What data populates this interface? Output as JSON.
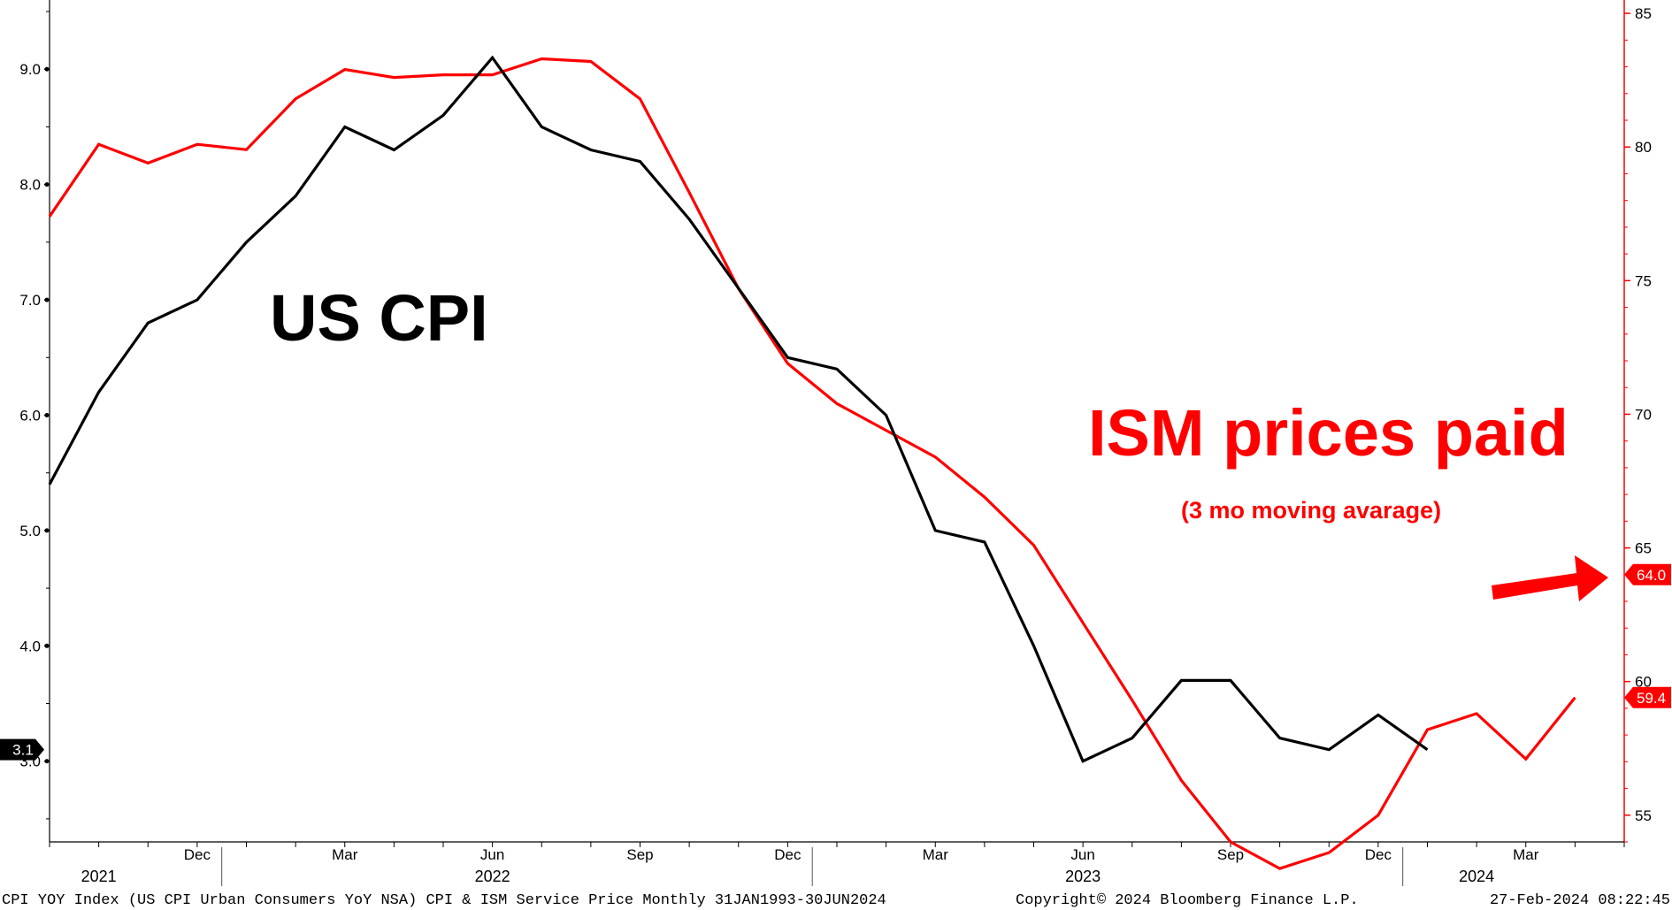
{
  "chart_data": {
    "type": "line",
    "colors": {
      "cpi": "#000000",
      "ism": "#ff0000"
    },
    "left_axis": {
      "ylim": [
        2.3,
        9.6
      ],
      "ticks": [
        "9.0",
        "8.0",
        "7.0",
        "6.0",
        "5.0",
        "4.0",
        "3.0"
      ],
      "tick_values": [
        9,
        8,
        7,
        6,
        5,
        4,
        3
      ]
    },
    "right_axis": {
      "ylim": [
        54,
        85.5
      ],
      "ticks": [
        "85",
        "80",
        "75",
        "70",
        "65",
        "60",
        "55"
      ],
      "tick_values": [
        85,
        80,
        75,
        70,
        65,
        60,
        55
      ]
    },
    "x_start": "2021-09",
    "x_end": "2024-05",
    "month_labels": [
      {
        "date": "2021-12",
        "label": "Dec"
      },
      {
        "date": "2022-03",
        "label": "Mar"
      },
      {
        "date": "2022-06",
        "label": "Jun"
      },
      {
        "date": "2022-09",
        "label": "Sep"
      },
      {
        "date": "2022-12",
        "label": "Dec"
      },
      {
        "date": "2023-03",
        "label": "Mar"
      },
      {
        "date": "2023-06",
        "label": "Jun"
      },
      {
        "date": "2023-09",
        "label": "Sep"
      },
      {
        "date": "2023-12",
        "label": "Dec"
      },
      {
        "date": "2024-03",
        "label": "Mar"
      }
    ],
    "year_labels": [
      {
        "date": "2021-10",
        "label": "2021"
      },
      {
        "date": "2022-06",
        "label": "2022"
      },
      {
        "date": "2023-06",
        "label": "2023"
      },
      {
        "date": "2024-02",
        "label": "2024"
      }
    ],
    "series": [
      {
        "name": "US CPI",
        "axis": "left",
        "x": [
          "2021-09",
          "2021-10",
          "2021-11",
          "2021-12",
          "2022-01",
          "2022-02",
          "2022-03",
          "2022-04",
          "2022-05",
          "2022-06",
          "2022-07",
          "2022-08",
          "2022-09",
          "2022-10",
          "2022-11",
          "2022-12",
          "2023-01",
          "2023-02",
          "2023-03",
          "2023-04",
          "2023-05",
          "2023-06",
          "2023-07",
          "2023-08",
          "2023-09",
          "2023-10",
          "2023-11",
          "2023-12",
          "2024-01"
        ],
        "values": [
          5.4,
          6.2,
          6.8,
          7.0,
          7.5,
          7.9,
          8.5,
          8.3,
          8.6,
          9.1,
          8.5,
          8.3,
          8.2,
          7.7,
          7.1,
          6.5,
          6.4,
          6.0,
          5.0,
          4.9,
          4.0,
          3.0,
          3.2,
          3.7,
          3.7,
          3.2,
          3.1,
          3.4,
          3.1
        ]
      },
      {
        "name": "ISM prices paid",
        "axis": "right",
        "x": [
          "2021-09",
          "2021-10",
          "2021-11",
          "2021-12",
          "2022-01",
          "2022-02",
          "2022-03",
          "2022-04",
          "2022-05",
          "2022-06",
          "2022-07",
          "2022-08",
          "2022-09",
          "2022-10",
          "2022-11",
          "2022-12",
          "2023-01",
          "2023-02",
          "2023-03",
          "2023-04",
          "2023-05",
          "2023-06",
          "2023-07",
          "2023-08",
          "2023-09",
          "2023-10",
          "2023-11",
          "2023-12",
          "2024-01",
          "2024-02",
          "2024-03",
          "2024-04"
        ],
        "values": [
          77.4,
          80.1,
          79.4,
          80.1,
          79.9,
          81.8,
          82.9,
          82.6,
          82.7,
          82.7,
          83.3,
          83.2,
          81.8,
          78.3,
          74.7,
          71.9,
          70.4,
          69.4,
          68.4,
          66.9,
          65.1,
          62.2,
          59.3,
          56.3,
          54.0,
          53.0,
          53.6,
          55.0,
          58.2,
          58.8,
          57.1,
          59.4
        ]
      }
    ],
    "value_badges": [
      {
        "label": "3.1",
        "axis": "left",
        "value": 3.1,
        "bg": "#000000",
        "fg": "#ffffff"
      },
      {
        "label": "64.0",
        "axis": "right",
        "value": 64.0,
        "bg": "#ff0000",
        "fg": "#ffffff"
      },
      {
        "label": "59.4",
        "axis": "right",
        "value": 59.4,
        "bg": "#ff0000",
        "fg": "#ffffff"
      }
    ],
    "annotations": {
      "cpi_title": "US CPI",
      "ism_title": "ISM prices paid",
      "ism_subtitle": "(3 mo moving avarage)",
      "arrow_icon": "right-arrow-icon"
    }
  },
  "footer": {
    "left": "CPI YOY Index (US CPI Urban Consumers YoY NSA) CPI & ISM Service Price  Monthly 31JAN1993-30JUN2024",
    "center": "Copyright© 2024 Bloomberg Finance L.P.",
    "right": "27-Feb-2024 08:22:45"
  }
}
